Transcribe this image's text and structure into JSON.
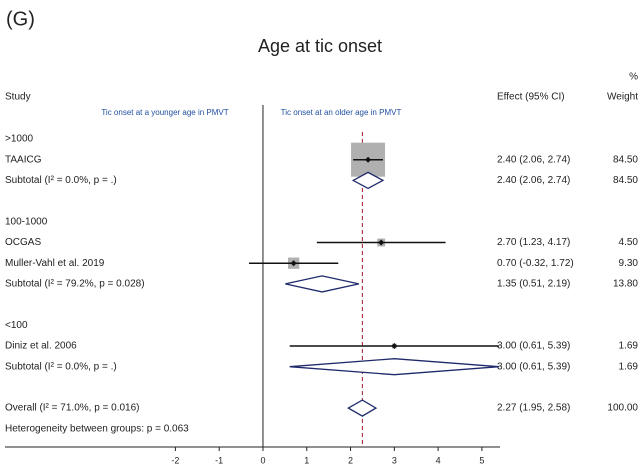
{
  "panel_label": "(G)",
  "chart_data": {
    "type": "forest",
    "title": "Age at tic onset",
    "study_header": "Study",
    "effect_header": "Effect (95% CI)",
    "weight_unit": "%",
    "weight_header": "Weight",
    "direction_labels": [
      "Tic onset at a younger age in PMVT",
      "Tic onset at an older age in PMVT"
    ],
    "xlim": [
      -2,
      5
    ],
    "xticks": [
      -2,
      -1,
      0,
      1,
      2,
      3,
      4,
      5
    ],
    "null_line": 0,
    "box_color": "#b0b0b0",
    "diamond_color": "#1f2a6b",
    "overall_line_color": "#a0182a",
    "label_color": "#1f4e9e",
    "groups": [
      {
        "label": ">1000",
        "studies": [
          {
            "name": "TAAICG",
            "effect": 2.4,
            "lo": 2.06,
            "hi": 2.74,
            "effect_label": "2.40 (2.06, 2.74)",
            "weight": 84.5,
            "weight_label": "84.50"
          }
        ],
        "subtotal": {
          "name": "Subtotal (I² = 0.0%, p = .)",
          "effect": 2.4,
          "lo": 2.06,
          "hi": 2.74,
          "effect_label": "2.40 (2.06, 2.74)",
          "weight": 84.5,
          "weight_label": "84.50"
        }
      },
      {
        "label": "100-1000",
        "studies": [
          {
            "name": "OCGAS",
            "effect": 2.7,
            "lo": 1.23,
            "hi": 4.17,
            "effect_label": "2.70 (1.23, 4.17)",
            "weight": 4.5,
            "weight_label": "4.50"
          },
          {
            "name": "Muller-Vahl et al. 2019",
            "effect": 0.7,
            "lo": -0.32,
            "hi": 1.72,
            "effect_label": "0.70 (-0.32, 1.72)",
            "weight": 9.3,
            "weight_label": "9.30"
          }
        ],
        "subtotal": {
          "name": "Subtotal (I² = 79.2%, p = 0.028)",
          "effect": 1.35,
          "lo": 0.51,
          "hi": 2.19,
          "effect_label": "1.35 (0.51, 2.19)",
          "weight": 13.8,
          "weight_label": "13.80"
        }
      },
      {
        "label": "<100",
        "studies": [
          {
            "name": "Diniz et al. 2006",
            "effect": 3.0,
            "lo": 0.61,
            "hi": 5.39,
            "effect_label": "3.00 (0.61, 5.39)",
            "weight": 1.69,
            "weight_label": "1.69"
          }
        ],
        "subtotal": {
          "name": "Subtotal (I² = 0.0%, p = .)",
          "effect": 3.0,
          "lo": 0.61,
          "hi": 5.39,
          "effect_label": "3.00 (0.61, 5.39)",
          "weight": 1.69,
          "weight_label": "1.69"
        }
      }
    ],
    "overall": {
      "name": "Overall (I² = 71.0%, p = 0.016)",
      "effect": 2.27,
      "lo": 1.95,
      "hi": 2.58,
      "effect_label": "2.27 (1.95, 2.58)",
      "weight": 100,
      "weight_label": "100.00"
    },
    "heterogeneity": "Heterogeneity between groups: p = 0.063"
  }
}
